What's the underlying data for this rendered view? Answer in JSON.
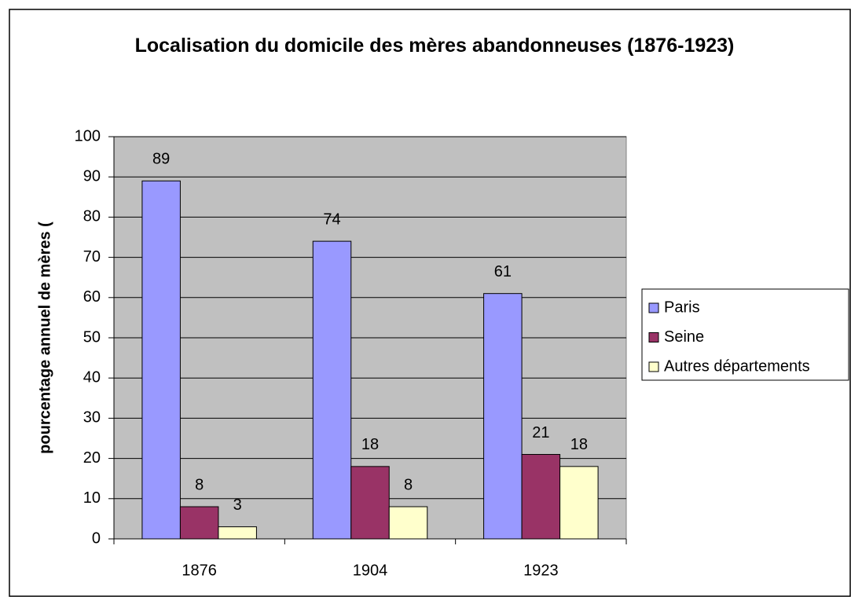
{
  "chart_data": {
    "type": "bar",
    "title": "Localisation du domicile des mères abandonneuses (1876-1923)",
    "y_label": "pourcentage annuel de mères (",
    "categories": [
      "1876",
      "1904",
      "1923"
    ],
    "series": [
      {
        "name": "Paris",
        "color": "#9999ff",
        "values": [
          89,
          74,
          61
        ]
      },
      {
        "name": "Seine",
        "color": "#993366",
        "values": [
          8,
          18,
          21
        ]
      },
      {
        "name": "Autres départements",
        "color": "#ffffcc",
        "values": [
          3,
          8,
          18
        ]
      }
    ],
    "ylim": [
      0,
      100
    ],
    "yticks": [
      0,
      10,
      20,
      30,
      40,
      50,
      60,
      70,
      80,
      90,
      100
    ],
    "grid": true,
    "legend": "right"
  }
}
